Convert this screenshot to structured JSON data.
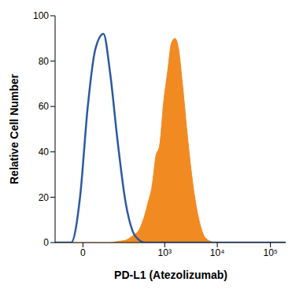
{
  "chart_data": {
    "type": "area",
    "x_label": "PD-L1 (Atezolizumab)",
    "y_label": "Relative Cell Number",
    "x": [
      -70,
      -20,
      -4,
      7,
      21,
      43,
      67,
      104,
      159,
      228,
      318,
      403,
      477,
      568,
      672,
      800,
      955,
      1135,
      1350,
      1580,
      1860,
      2190,
      2780,
      3640,
      4730,
      6000,
      9000,
      200000
    ],
    "series": [
      {
        "type": "area",
        "color": "#f28a22",
        "values": [
          0,
          0,
          0,
          0,
          0,
          0,
          0,
          0.5,
          1,
          3,
          6,
          12,
          18,
          25,
          38,
          43,
          62,
          75,
          88,
          90,
          85,
          70,
          45,
          22,
          8,
          2,
          0,
          0
        ]
      },
      {
        "type": "line",
        "color": "#2b59a3",
        "values": [
          0,
          0,
          20,
          60,
          85,
          92,
          75,
          45,
          18,
          5,
          1,
          0,
          0,
          0,
          0,
          0,
          0,
          0,
          0,
          0,
          0,
          0,
          0,
          0,
          0,
          0,
          0,
          0
        ]
      }
    ],
    "xlim": [
      -70,
      200000
    ],
    "xticks": [
      0,
      {
        "value": 1000,
        "label": "10³"
      },
      {
        "value": 10000,
        "label": "10⁴"
      },
      {
        "value": 100000,
        "label": "10⁵"
      }
    ],
    "ylim": [
      0,
      100
    ],
    "yticks": [
      0,
      20,
      40,
      60,
      80,
      100
    ],
    "grid": false
  }
}
